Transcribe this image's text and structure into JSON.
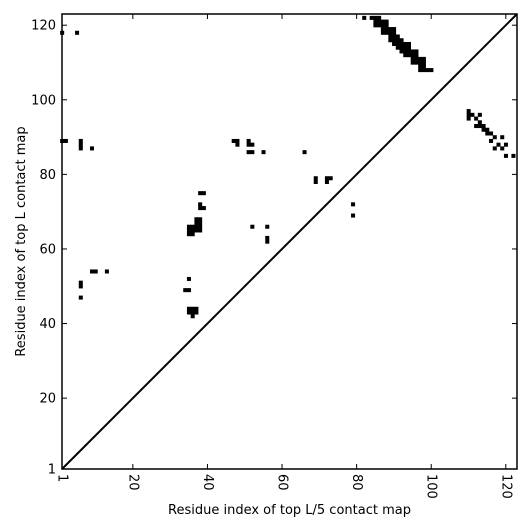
{
  "chart_data": {
    "type": "heatmap",
    "title": "",
    "xlabel": "Residue index of top L/5 contact map",
    "ylabel": "Residue index of top L contact map",
    "xlim": [
      1,
      123
    ],
    "ylim": [
      1,
      123
    ],
    "x_ticks": [
      1,
      20,
      40,
      60,
      80,
      100,
      120
    ],
    "y_ticks": [
      1,
      20,
      40,
      60,
      80,
      100,
      120
    ],
    "x_tick_labels": [
      "1",
      "20",
      "40",
      "60",
      "80",
      "100",
      "120"
    ],
    "y_tick_labels": [
      "1",
      "20",
      "40",
      "60",
      "80",
      "100",
      "120"
    ],
    "x_tick_rotation": -90,
    "grid": false,
    "legend": null,
    "diagonal": {
      "from": [
        1,
        1
      ],
      "to": [
        123,
        123
      ]
    },
    "colors": {
      "contact": "#000000",
      "background": "#ffffff",
      "axes": "#000000"
    },
    "contacts": [
      [
        1,
        118
      ],
      [
        5,
        118
      ],
      [
        82,
        122
      ],
      [
        84,
        122
      ],
      [
        85,
        122
      ],
      [
        86,
        122
      ],
      [
        85,
        121
      ],
      [
        86,
        121
      ],
      [
        87,
        121
      ],
      [
        88,
        121
      ],
      [
        85,
        120
      ],
      [
        86,
        120
      ],
      [
        87,
        120
      ],
      [
        88,
        120
      ],
      [
        87,
        119
      ],
      [
        88,
        119
      ],
      [
        89,
        119
      ],
      [
        90,
        119
      ],
      [
        87,
        118
      ],
      [
        88,
        118
      ],
      [
        89,
        118
      ],
      [
        90,
        118
      ],
      [
        89,
        117
      ],
      [
        90,
        117
      ],
      [
        91,
        117
      ],
      [
        89,
        116
      ],
      [
        90,
        116
      ],
      [
        91,
        116
      ],
      [
        92,
        116
      ],
      [
        90,
        115
      ],
      [
        91,
        115
      ],
      [
        92,
        115
      ],
      [
        93,
        115
      ],
      [
        94,
        115
      ],
      [
        91,
        114
      ],
      [
        92,
        114
      ],
      [
        93,
        114
      ],
      [
        94,
        114
      ],
      [
        92,
        113
      ],
      [
        93,
        113
      ],
      [
        94,
        113
      ],
      [
        95,
        113
      ],
      [
        96,
        113
      ],
      [
        93,
        112
      ],
      [
        94,
        112
      ],
      [
        95,
        112
      ],
      [
        96,
        112
      ],
      [
        95,
        111
      ],
      [
        96,
        111
      ],
      [
        97,
        111
      ],
      [
        98,
        111
      ],
      [
        95,
        110
      ],
      [
        96,
        110
      ],
      [
        97,
        110
      ],
      [
        98,
        110
      ],
      [
        97,
        109
      ],
      [
        98,
        109
      ],
      [
        97,
        108
      ],
      [
        98,
        108
      ],
      [
        99,
        108
      ],
      [
        100,
        108
      ],
      [
        110,
        97
      ],
      [
        110,
        96
      ],
      [
        111,
        96
      ],
      [
        113,
        96
      ],
      [
        110,
        95
      ],
      [
        112,
        95
      ],
      [
        113,
        94
      ],
      [
        112,
        93
      ],
      [
        113,
        93
      ],
      [
        114,
        93
      ],
      [
        114,
        92
      ],
      [
        115,
        92
      ],
      [
        115,
        91
      ],
      [
        116,
        91
      ],
      [
        117,
        90
      ],
      [
        119,
        90
      ],
      [
        116,
        89
      ],
      [
        118,
        88
      ],
      [
        120,
        88
      ],
      [
        117,
        87
      ],
      [
        119,
        87
      ],
      [
        120,
        85
      ],
      [
        122,
        85
      ],
      [
        1,
        89
      ],
      [
        2,
        89
      ],
      [
        6,
        89
      ],
      [
        6,
        88
      ],
      [
        6,
        87
      ],
      [
        9,
        87
      ],
      [
        47,
        89
      ],
      [
        48,
        89
      ],
      [
        51,
        89
      ],
      [
        48,
        88
      ],
      [
        51,
        88
      ],
      [
        52,
        88
      ],
      [
        51,
        86
      ],
      [
        52,
        86
      ],
      [
        55,
        86
      ],
      [
        66,
        86
      ],
      [
        69,
        79
      ],
      [
        72,
        79
      ],
      [
        73,
        79
      ],
      [
        69,
        78
      ],
      [
        72,
        78
      ],
      [
        38,
        75
      ],
      [
        39,
        75
      ],
      [
        38,
        72
      ],
      [
        38,
        71
      ],
      [
        39,
        71
      ],
      [
        79,
        72
      ],
      [
        79,
        69
      ],
      [
        37,
        68
      ],
      [
        38,
        68
      ],
      [
        37,
        67
      ],
      [
        38,
        67
      ],
      [
        35,
        66
      ],
      [
        36,
        66
      ],
      [
        37,
        66
      ],
      [
        38,
        66
      ],
      [
        35,
        65
      ],
      [
        36,
        65
      ],
      [
        37,
        65
      ],
      [
        38,
        65
      ],
      [
        35,
        64
      ],
      [
        36,
        64
      ],
      [
        52,
        66
      ],
      [
        56,
        66
      ],
      [
        56,
        63
      ],
      [
        56,
        62
      ],
      [
        9,
        54
      ],
      [
        10,
        54
      ],
      [
        13,
        54
      ],
      [
        35,
        52
      ],
      [
        6,
        51
      ],
      [
        6,
        50
      ],
      [
        34,
        49
      ],
      [
        35,
        49
      ],
      [
        6,
        47
      ],
      [
        35,
        44
      ],
      [
        36,
        44
      ],
      [
        37,
        44
      ],
      [
        35,
        43
      ],
      [
        36,
        43
      ],
      [
        37,
        43
      ],
      [
        36,
        42
      ]
    ]
  }
}
